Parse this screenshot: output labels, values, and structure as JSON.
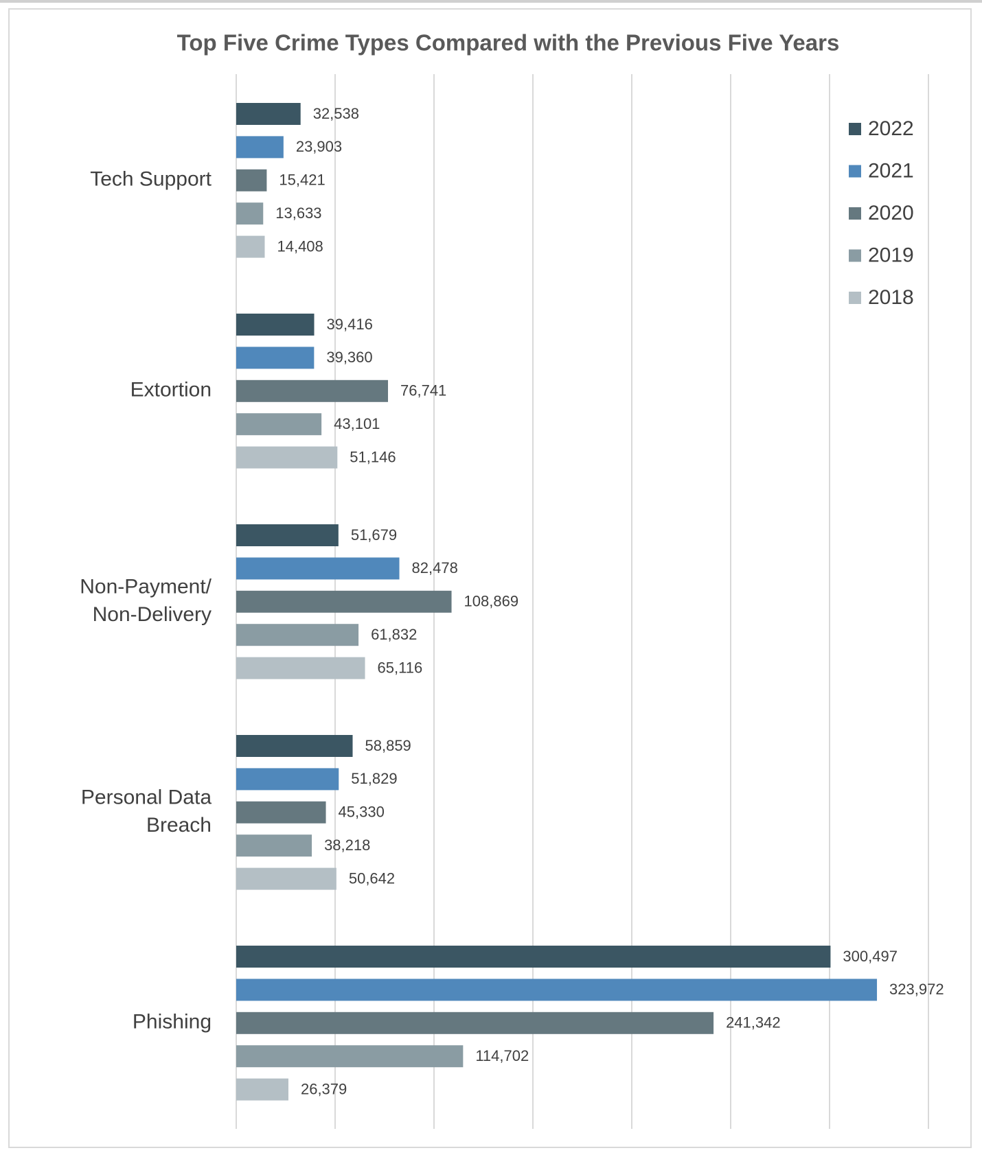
{
  "chart_data": {
    "type": "hbar",
    "title": "Top Five Crime Types Compared with the Previous Five Years",
    "categories": [
      "Tech Support",
      "Extortion",
      "Non-Payment/\nNon-Delivery",
      "Personal Data\nBreach",
      "Phishing"
    ],
    "series": [
      {
        "name": "2022",
        "color": "#3b5663",
        "values": [
          32538,
          39416,
          51679,
          58859,
          300497
        ],
        "value_labels": [
          "32,538",
          "39,416",
          "51,679",
          "58,859",
          "300,497"
        ]
      },
      {
        "name": "2021",
        "color": "#5088bb",
        "values": [
          23903,
          39360,
          82478,
          51829,
          323972
        ],
        "value_labels": [
          "23,903",
          "39,360",
          "82,478",
          "51,829",
          "323,972"
        ]
      },
      {
        "name": "2020",
        "color": "#65787f",
        "values": [
          15421,
          76741,
          108869,
          45330,
          241342
        ],
        "value_labels": [
          "15,421",
          "76,741",
          "108,869",
          "45,330",
          "241,342"
        ]
      },
      {
        "name": "2019",
        "color": "#8a9ca3",
        "values": [
          13633,
          43101,
          61832,
          38218,
          114702
        ],
        "value_labels": [
          "13,633",
          "43,101",
          "61,832",
          "38,218",
          "114,702"
        ]
      },
      {
        "name": "2018",
        "color": "#b4bfc5",
        "values": [
          14408,
          51146,
          65116,
          50642,
          26379
        ],
        "value_labels": [
          "14,408",
          "51,146",
          "65,116",
          "50,642",
          "26,379"
        ]
      }
    ],
    "xlim": [
      0,
      350000
    ],
    "xticks": [
      0,
      50000,
      100000,
      150000,
      200000,
      250000,
      300000,
      350000
    ],
    "grid": true,
    "legend": "right"
  }
}
